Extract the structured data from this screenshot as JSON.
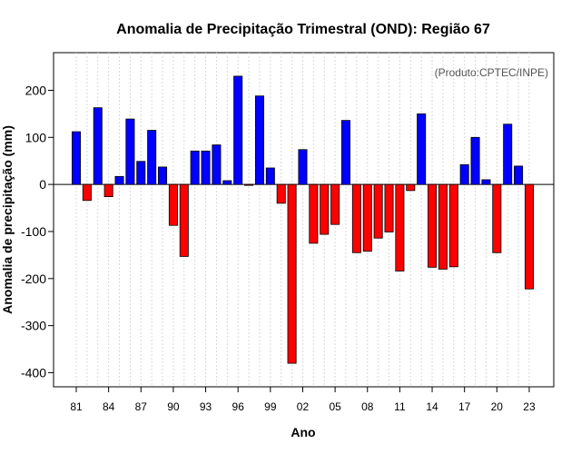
{
  "chart_data": {
    "type": "bar",
    "title": "Anomalia de Precipitação Trimestral (OND): Região 67",
    "xlabel": "Ano",
    "ylabel": "Anomalia de precipitação (mm)",
    "credit": "(Produto:CPTEC/INPE)",
    "ylim": [
      -430,
      280
    ],
    "yticks": [
      -400,
      -300,
      -200,
      -100,
      0,
      100,
      200
    ],
    "grid": true,
    "positive_color": "#0000ff",
    "negative_color": "#ff0000",
    "categories": [
      "81",
      "82",
      "83",
      "84",
      "85",
      "86",
      "87",
      "88",
      "89",
      "90",
      "91",
      "92",
      "93",
      "94",
      "95",
      "96",
      "97",
      "98",
      "99",
      "00",
      "01",
      "02",
      "03",
      "04",
      "05",
      "06",
      "07",
      "08",
      "09",
      "10",
      "11",
      "12",
      "13",
      "14",
      "15",
      "16",
      "17",
      "18",
      "19",
      "20",
      "21",
      "22",
      "23"
    ],
    "xtick_labels": [
      "81",
      "84",
      "87",
      "90",
      "93",
      "96",
      "99",
      "02",
      "05",
      "08",
      "11",
      "14",
      "17",
      "20",
      "23"
    ],
    "values": [
      112,
      -34,
      163,
      -26,
      17,
      139,
      49,
      115,
      37,
      -87,
      -153,
      71,
      71,
      84,
      8,
      230,
      -2,
      188,
      35,
      -40,
      -380,
      74,
      -125,
      -106,
      -85,
      136,
      -145,
      -142,
      -114,
      -101,
      -184,
      -13,
      150,
      -176,
      -180,
      -175,
      42,
      100,
      10,
      -145,
      128,
      39,
      -222
    ]
  }
}
